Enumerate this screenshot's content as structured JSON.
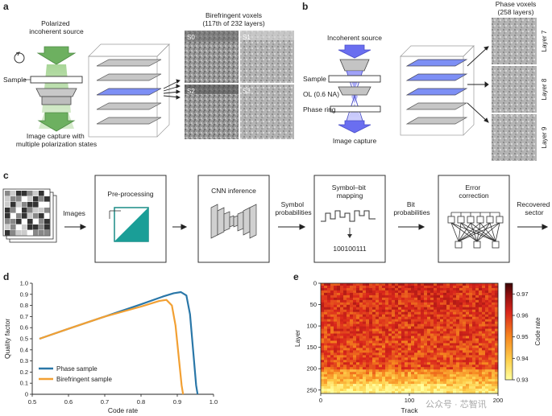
{
  "panels": {
    "a": {
      "letter": "a",
      "source_label": "Polarized\nincoherent source",
      "sample_label": "Sample",
      "capture_label": "Image capture with\nmultiple polarization states",
      "voxel_title": "Birefringent voxels",
      "voxel_subtitle": "(117th of 232 layers)",
      "image_labels": [
        "S0",
        "S1",
        "S2",
        "S3"
      ]
    },
    "b": {
      "letter": "b",
      "source_label": "Incoherent source",
      "sample_label": "Sample",
      "ol_label": "OL (0.6 NA)",
      "ring_label": "Phase ring",
      "capture_label": "Image capture",
      "voxel_title": "Phase voxels",
      "voxel_subtitle": "(258 layers)",
      "layer_labels": [
        "Layer 7",
        "Layer 8",
        "Layer 9"
      ]
    },
    "c": {
      "letter": "c",
      "images_label": "Images",
      "preprocessing_label": "Pre-processing",
      "cnn_label": "CNN inference",
      "symbol_prob_label": "Symbol\nprobabilities",
      "mapping_label": "Symbol–bit\nmapping",
      "bits_value": "100100111",
      "bit_prob_label": "Bit\nprobabilities",
      "ecc_label": "Error\ncorrection",
      "recovered_label": "Recovered\nsector"
    }
  },
  "chart_data": [
    {
      "panel": "d",
      "type": "line",
      "title": "",
      "xlabel": "Code rate",
      "ylabel": "Quality factor",
      "xlim": [
        0.5,
        1.0
      ],
      "ylim": [
        0,
        1.0
      ],
      "xticks": [
        "0.5",
        "0.6",
        "0.7",
        "0.8",
        "0.9",
        "1.0"
      ],
      "yticks": [
        "0",
        "0.1",
        "0.2",
        "0.3",
        "0.4",
        "0.5",
        "0.6",
        "0.7",
        "0.8",
        "0.9",
        "1.0"
      ],
      "legend_position": "bottom-left",
      "series": [
        {
          "name": "Phase sample",
          "color": "#2a77a8",
          "points": [
            [
              0.52,
              0.5
            ],
            [
              0.6,
              0.59
            ],
            [
              0.7,
              0.7
            ],
            [
              0.8,
              0.81
            ],
            [
              0.86,
              0.88
            ],
            [
              0.89,
              0.91
            ],
            [
              0.91,
              0.92
            ],
            [
              0.925,
              0.89
            ],
            [
              0.935,
              0.72
            ],
            [
              0.945,
              0.35
            ],
            [
              0.952,
              0.08
            ],
            [
              0.956,
              0.0
            ]
          ]
        },
        {
          "name": "Birefringent sample",
          "color": "#f2a033",
          "points": [
            [
              0.52,
              0.5
            ],
            [
              0.6,
              0.59
            ],
            [
              0.7,
              0.7
            ],
            [
              0.8,
              0.79
            ],
            [
              0.85,
              0.84
            ],
            [
              0.87,
              0.85
            ],
            [
              0.885,
              0.8
            ],
            [
              0.895,
              0.62
            ],
            [
              0.905,
              0.3
            ],
            [
              0.912,
              0.08
            ],
            [
              0.916,
              0.0
            ]
          ]
        }
      ]
    },
    {
      "panel": "e",
      "type": "heatmap",
      "title": "",
      "xlabel": "Track",
      "ylabel": "Layer",
      "xlim": [
        0,
        200
      ],
      "ylim": [
        0,
        258
      ],
      "xticks": [
        "0",
        "100",
        "200"
      ],
      "yticks": [
        "0",
        "50",
        "100",
        "150",
        "200",
        "250"
      ],
      "colorbar_label": "Code rate",
      "colorbar_ticks": [
        "0.93",
        "0.94",
        "0.95",
        "0.96",
        "0.97"
      ],
      "colorbar_range": [
        0.93,
        0.975
      ],
      "colorbar_colors": [
        "#ffff9e",
        "#fed04d",
        "#f6861f",
        "#d9261c",
        "#8e0f0f",
        "#3a0505"
      ]
    }
  ],
  "watermark": "公众号 · 芯智讯"
}
